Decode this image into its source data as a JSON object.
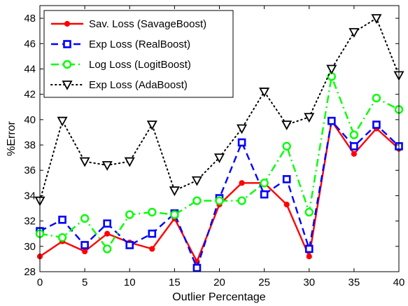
{
  "chart_data": {
    "type": "line",
    "title": "",
    "xlabel": "Outlier Percentage",
    "ylabel": "%Error",
    "xlim": [
      0,
      40
    ],
    "ylim": [
      28,
      49
    ],
    "xticks": [
      0,
      5,
      10,
      15,
      20,
      25,
      30,
      35,
      40
    ],
    "yticks": [
      28,
      30,
      32,
      34,
      36,
      38,
      40,
      42,
      44,
      46,
      48
    ],
    "grid": false,
    "legend_position": "top-left",
    "x": [
      0,
      2.5,
      5,
      7.5,
      10,
      12.5,
      15,
      17.5,
      20,
      22.5,
      25,
      27.5,
      30,
      32.5,
      35,
      37.5,
      40
    ],
    "series": [
      {
        "name": "Sav. Loss (SavageBoost)",
        "color": "#ff0000",
        "line_style": "solid",
        "marker": "dot",
        "values": [
          29.2,
          30.4,
          29.6,
          31.0,
          30.3,
          29.8,
          32.2,
          28.8,
          33.3,
          35.0,
          35.0,
          33.3,
          29.2,
          39.9,
          37.3,
          39.3,
          37.7
        ]
      },
      {
        "name": "Exp Loss (RealBoost)",
        "color": "#0000ff",
        "line_style": "dashed",
        "marker": "square",
        "values": [
          31.2,
          32.1,
          30.1,
          31.8,
          30.1,
          31.0,
          32.6,
          28.3,
          33.8,
          38.2,
          34.1,
          35.3,
          29.8,
          39.9,
          37.9,
          39.6,
          37.9
        ]
      },
      {
        "name": "Log Loss (LogitBoost)",
        "color": "#00ff00",
        "line_style": "dashdot",
        "marker": "circle",
        "values": [
          31.0,
          30.7,
          32.2,
          29.8,
          32.5,
          32.7,
          32.5,
          33.6,
          33.6,
          33.6,
          35.0,
          37.9,
          32.7,
          43.4,
          38.8,
          41.7,
          40.8
        ]
      },
      {
        "name": "Exp Loss (AdaBoost)",
        "color": "#000000",
        "line_style": "dotted",
        "marker": "triangle-down",
        "values": [
          33.6,
          39.9,
          36.7,
          36.4,
          36.7,
          39.6,
          34.4,
          35.2,
          37.0,
          39.3,
          42.2,
          39.6,
          40.2,
          44.0,
          46.9,
          48.0,
          43.5
        ]
      }
    ]
  }
}
